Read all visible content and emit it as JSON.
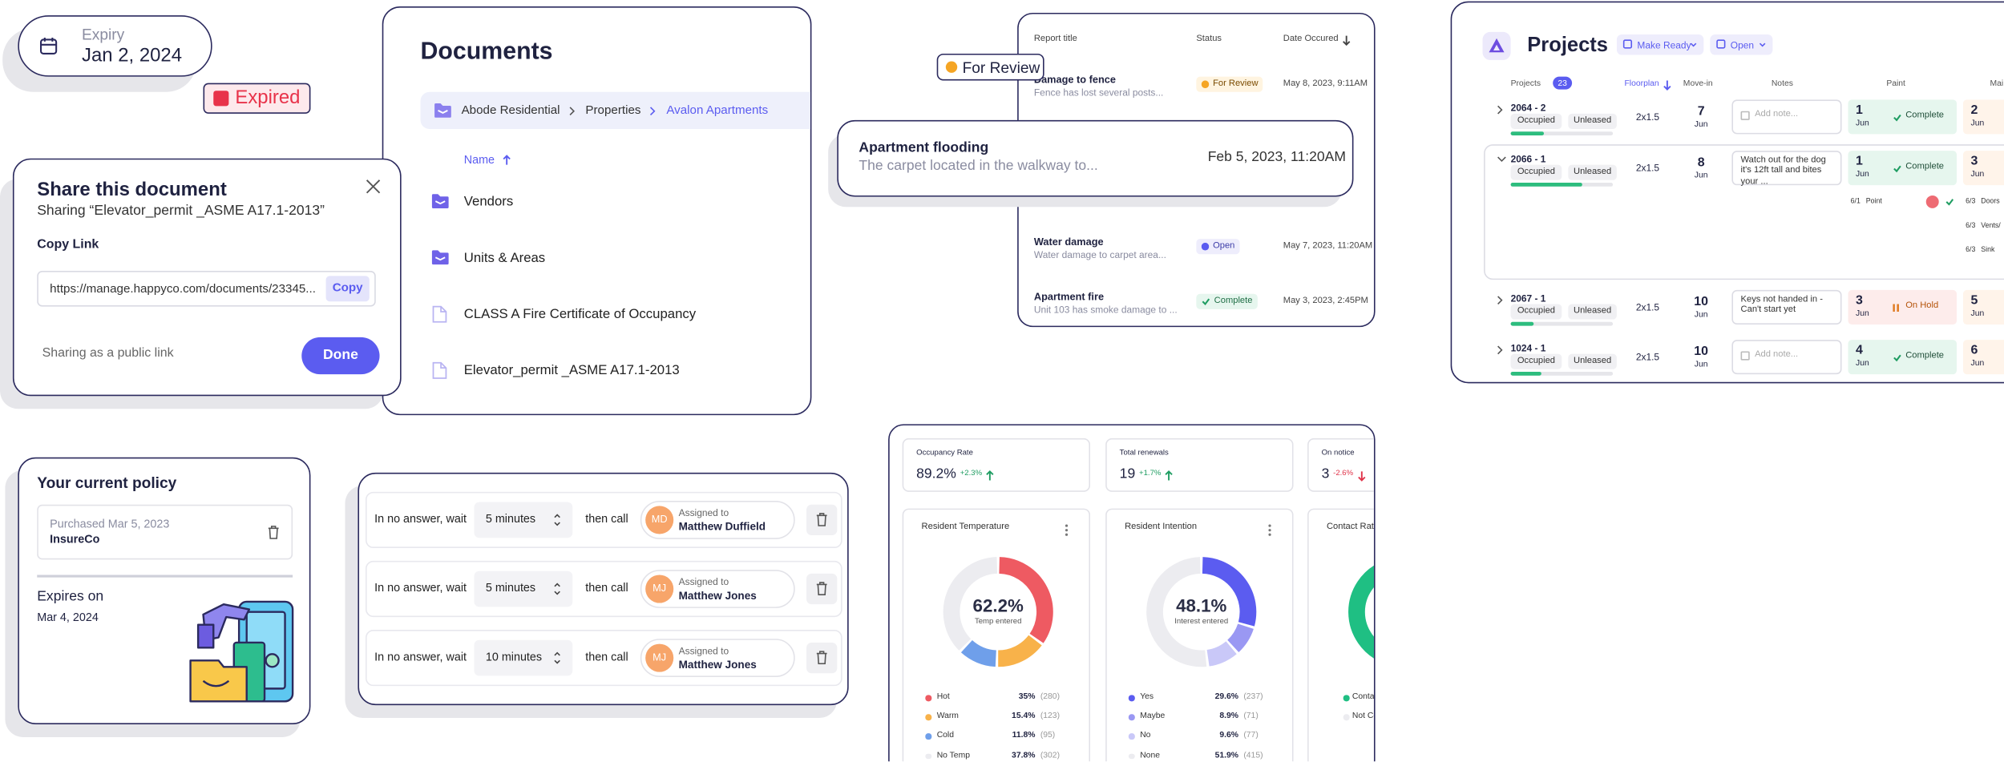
{
  "expiry": {
    "label": "Expiry",
    "date": "Jan 2, 2024"
  },
  "badge": "Expired",
  "share": {
    "title": "Share this document",
    "subtitle": "Sharing “Elevator_permit _ASME A17.1-2013”",
    "copy_link": "Copy Link",
    "url": "https://manage.happyco.com/documents/23345...",
    "copy_button": "Copy",
    "public_note": "Sharing as a public link",
    "done": "Done"
  },
  "documents": {
    "title": "Documents",
    "breadcrumb": [
      "Abode Residential",
      "Properties",
      "Avalon Apartments"
    ],
    "sort": "Name",
    "folders": [
      "Vendors",
      "Units & Areas"
    ],
    "files": [
      "CLASS A Fire Certificate of Occupancy",
      "Elevator_permit _ASME A17.1-2013"
    ]
  },
  "review_badge": "For Review",
  "reports": {
    "headers": [
      "Report title",
      "Status",
      "Date Occured"
    ],
    "rows": [
      {
        "title": "Damage to fence",
        "description": "Fence has lost several posts...",
        "status": "For Review",
        "date": "May 8, 2023, 9:11AM"
      },
      {
        "title": "Water damage",
        "description": "Water damage to carpet area...",
        "status": "Open",
        "date": "May 7, 2023, 11:20AM"
      },
      {
        "title": "Apartment fire",
        "description": "Unit 103 has smoke damage to ...",
        "status": "Complete",
        "date": "May 3, 2023, 2:45PM"
      }
    ]
  },
  "flood": {
    "title": "Apartment flooding",
    "description": "The carpet located in the walkway to...",
    "date": "Feb 5, 2023, 11:20AM"
  },
  "projects": {
    "title": "Projects",
    "filters": [
      "Make Ready",
      "Open"
    ],
    "headers": {
      "projects": "Projects",
      "count": "23",
      "floorplan": "Floorplan",
      "move_in": "Move-in",
      "notes": "Notes",
      "paint": "Paint",
      "next": "Mai"
    },
    "rows": [
      {
        "unit": "2064 - 2",
        "tags": [
          "Occupied",
          "Unleased"
        ],
        "floorplan": "2x1.5",
        "move_in_day": "7",
        "move_in_month": "Jun",
        "note": "Add note...",
        "paint_day": "1",
        "paint_month": "Jun",
        "paint_status": "Complete",
        "next_day": "2",
        "next_month": "Jun"
      },
      {
        "unit": "2066 - 1",
        "tags": [
          "Occupied",
          "Unleased"
        ],
        "floorplan": "2x1.5",
        "move_in_day": "8",
        "move_in_month": "Jun",
        "note": "Watch out for the dog it's 12ft tall and bites your ...",
        "paint_day": "1",
        "paint_month": "Jun",
        "paint_status": "Complete",
        "next_day": "3",
        "next_month": "Jun"
      },
      {
        "unit": "2067 - 1",
        "tags": [
          "Occupied",
          "Unleased"
        ],
        "floorplan": "2x1.5",
        "move_in_day": "10",
        "move_in_month": "Jun",
        "note": "Keys not handed in - Can't start yet",
        "paint_day": "3",
        "paint_month": "Jun",
        "paint_status": "On Hold",
        "next_day": "5",
        "next_month": "Jun"
      },
      {
        "unit": "1024 - 1",
        "tags": [
          "Occupied",
          "Unleased"
        ],
        "floorplan": "2x1.5",
        "move_in_day": "10",
        "move_in_month": "Jun",
        "note": "Add note...",
        "paint_day": "4",
        "paint_month": "Jun",
        "paint_status": "Complete",
        "next_day": "6",
        "next_month": "Jun"
      }
    ],
    "tasks": [
      {
        "date": "6/1",
        "name": "Point"
      },
      {
        "date": "6/3",
        "name": "Doors"
      },
      {
        "date": "6/3",
        "name": "Vents/"
      },
      {
        "date": "6/3",
        "name": "Sink"
      }
    ]
  },
  "policy": {
    "title": "Your current policy",
    "purchased": "Purchased Mar 5, 2023",
    "insurer": "InsureCo",
    "expires_label": "Expires on",
    "expires_date": "Mar 4, 2024"
  },
  "calls": {
    "rows": [
      {
        "prompt": "In no answer, wait",
        "delay": "5 minutes",
        "action": "then call",
        "assigned_label": "Assigned to",
        "initials": "MD",
        "name": "Matthew Duffield"
      },
      {
        "prompt": "In no answer, wait",
        "delay": "5 minutes",
        "action": "then call",
        "assigned_label": "Assigned to",
        "initials": "MJ",
        "name": "Matthew Jones"
      },
      {
        "prompt": "In no answer, wait",
        "delay": "10 minutes",
        "action": "then call",
        "assigned_label": "Assigned to",
        "initials": "MJ",
        "name": "Matthew Jones"
      }
    ]
  },
  "dashboard": {
    "stats": [
      {
        "label": "Occupancy Rate",
        "value": "89.2%",
        "change": "+2.3%"
      },
      {
        "label": "Total renewals",
        "value": "19",
        "change": "+1.7%"
      },
      {
        "label": "On notice",
        "value": "3",
        "change": "-2.6%"
      }
    ],
    "donuts": [
      {
        "title": "Resident Temperature",
        "center_value": "62.2%",
        "center_label": "Temp entered",
        "items": [
          {
            "name": "Hot",
            "value": 35,
            "value_label": "35%",
            "count": "(280)",
            "color": "#ee5a62"
          },
          {
            "name": "Warm",
            "value": 15.4,
            "value_label": "15.4%",
            "count": "(123)",
            "color": "#f8b24a"
          },
          {
            "name": "Cold",
            "value": 11.8,
            "value_label": "11.8%",
            "count": "(95)",
            "color": "#6f9fea"
          },
          {
            "name": "No Temp",
            "value": 37.8,
            "value_label": "37.8%",
            "count": "(302)",
            "color": "#ececf0"
          }
        ]
      },
      {
        "title": "Resident Intention",
        "center_value": "48.1%",
        "center_label": "Interest entered",
        "items": [
          {
            "name": "Yes",
            "value": 29.6,
            "value_label": "29.6%",
            "count": "(237)",
            "color": "#5b5cf0"
          },
          {
            "name": "Maybe",
            "value": 8.9,
            "value_label": "8.9%",
            "count": "(71)",
            "color": "#9a98f3"
          },
          {
            "name": "No",
            "value": 9.6,
            "value_label": "9.6%",
            "count": "(77)",
            "color": "#c9c8f8"
          },
          {
            "name": "None",
            "value": 51.9,
            "value_label": "51.9%",
            "count": "(415)",
            "color": "#ececf0"
          }
        ]
      }
    ],
    "partial": {
      "title": "Contact Rate",
      "legend": [
        "Contac",
        "Not Co"
      ]
    }
  }
}
